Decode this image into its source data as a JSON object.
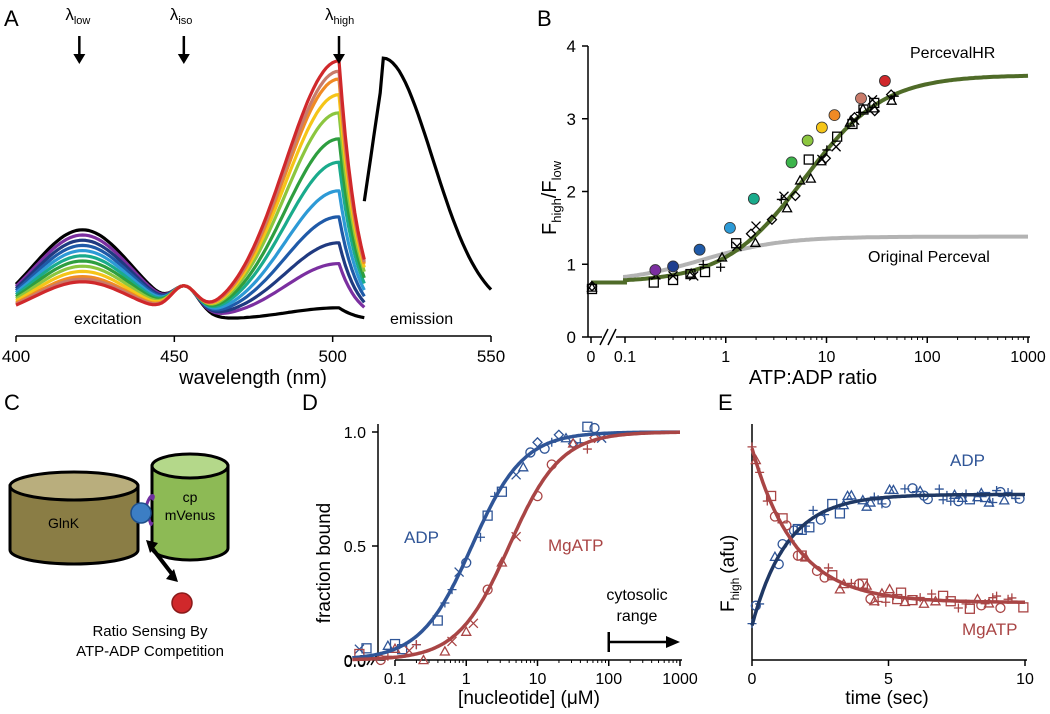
{
  "figure": {
    "panel_letters": [
      "A",
      "B",
      "C",
      "D",
      "E"
    ]
  },
  "chart_data": [
    {
      "panel": "A",
      "type": "line",
      "xlabel": "wavelength (nm)",
      "xlim": [
        400,
        550
      ],
      "x_ticks": [
        400,
        450,
        500,
        550
      ],
      "ylabel": "",
      "ylim": [
        0,
        1
      ],
      "wavelength_markers": [
        {
          "label": "λ",
          "sub": "low",
          "x": 420
        },
        {
          "label": "λ",
          "sub": "iso",
          "x": 453
        },
        {
          "label": "λ",
          "sub": "high",
          "x": 502
        }
      ],
      "annotations": [
        "excitation",
        "emission"
      ],
      "series_colors": [
        "#000000",
        "#7b2fa0",
        "#203a80",
        "#1f5aa8",
        "#2d9ad6",
        "#1aab8c",
        "#2e9e3f",
        "#8cc63f",
        "#f5c518",
        "#f08a24",
        "#c97b6a",
        "#d0282b"
      ],
      "excitation_peak_x": 502,
      "excitation_series_peaks": [
        0.05,
        0.22,
        0.3,
        0.4,
        0.5,
        0.61,
        0.7,
        0.8,
        0.87,
        0.93,
        0.96,
        1.0
      ],
      "excitation_series_shoulders": [
        0.35,
        0.33,
        0.31,
        0.29,
        0.27,
        0.25,
        0.23,
        0.21,
        0.19,
        0.17,
        0.16,
        0.15
      ],
      "emission": {
        "x": [
          510,
          515,
          520,
          530,
          540,
          550
        ],
        "y": [
          0.48,
          0.98,
          0.9,
          0.5,
          0.22,
          0.1
        ]
      }
    },
    {
      "panel": "B",
      "type": "scatter",
      "xlabel": "ATP:ADP ratio",
      "ylabel": "F",
      "ylabel_sub1": "high",
      "ylabel_sub2": "low",
      "x_scale": "log with break at 0",
      "xlim": [
        0,
        1000
      ],
      "x_ticks": [
        "0",
        "0.1",
        "1",
        "10",
        "100",
        "1000"
      ],
      "ylim": [
        0,
        4
      ],
      "y_ticks": [
        0,
        1,
        2,
        3,
        4
      ],
      "curves": [
        {
          "name": "PercevalHR",
          "color": "#4f6b28",
          "baseline": 0.75,
          "max": 3.6,
          "k": 6
        },
        {
          "name": "Original Perceval",
          "color": "#b3b3b3",
          "baseline": 0.75,
          "max": 1.38,
          "k": 0.6
        }
      ],
      "colored_points": [
        {
          "x": 0.2,
          "y": 0.92,
          "color": "#7b2fa0"
        },
        {
          "x": 0.3,
          "y": 0.97,
          "color": "#1f3f8f"
        },
        {
          "x": 0.55,
          "y": 1.2,
          "color": "#1f5aa8"
        },
        {
          "x": 1.1,
          "y": 1.5,
          "color": "#2d9ad6"
        },
        {
          "x": 1.9,
          "y": 1.9,
          "color": "#1aab8c"
        },
        {
          "x": 4.5,
          "y": 2.4,
          "color": "#3cb44b"
        },
        {
          "x": 6.5,
          "y": 2.7,
          "color": "#8cc63f"
        },
        {
          "x": 9,
          "y": 2.88,
          "color": "#f5c518"
        },
        {
          "x": 12,
          "y": 3.05,
          "color": "#f08a24"
        },
        {
          "x": 22,
          "y": 3.28,
          "color": "#c97b6a"
        },
        {
          "x": 38,
          "y": 3.52,
          "color": "#d0282b"
        }
      ],
      "labels": [
        "PercevalHR",
        "Original Perceval"
      ]
    },
    {
      "panel": "D",
      "type": "scatter",
      "xlabel": "[nucleotide] (μM)",
      "ylabel": "fraction bound",
      "xlim": [
        0.01,
        1000
      ],
      "x_ticks": [
        "0.0",
        "0.1",
        "1",
        "10",
        "100",
        "1000"
      ],
      "ylim": [
        0,
        1.0
      ],
      "y_ticks": [
        "0.0",
        "0.5",
        "1.0"
      ],
      "series": [
        {
          "name": "ADP",
          "color": "#2f5597",
          "kd": 1.2,
          "hill": 1.2
        },
        {
          "name": "MgATP",
          "color": "#a94545",
          "kd": 4.0,
          "hill": 1.2
        }
      ],
      "annotation": {
        "line1": "cytosolic",
        "line2": "range",
        "from": 100,
        "to": 1000
      }
    },
    {
      "panel": "E",
      "type": "scatter",
      "xlabel": "time (sec)",
      "ylabel": "F",
      "ylabel_sub": "high",
      "ylabel_tail": "(afu)",
      "xlim": [
        0,
        10
      ],
      "x_ticks": [
        0,
        5,
        10
      ],
      "series": [
        {
          "name": "ADP",
          "color": "#2f5597",
          "y0": 0.15,
          "yinf": 0.72,
          "tau": 1.3
        },
        {
          "name": "MgATP",
          "color": "#a94545",
          "y0": 0.92,
          "yinf": 0.25,
          "tau": 1.6
        }
      ]
    }
  ],
  "diagram": {
    "panel": "C",
    "glnk_label": "GlnK",
    "venus_label_1": "cp",
    "venus_label_2": "mVenus",
    "caption_1": "Ratio Sensing By",
    "caption_2": "ATP-ADP Competition",
    "colors": {
      "glnk": "#8a7d45",
      "glnk_top": "#b9ae7d",
      "venus": "#8dba55",
      "venus_top": "#b4d88a",
      "linker": "#7030a0",
      "site": "#3c7ec4",
      "ligand": "#d0282b"
    }
  }
}
